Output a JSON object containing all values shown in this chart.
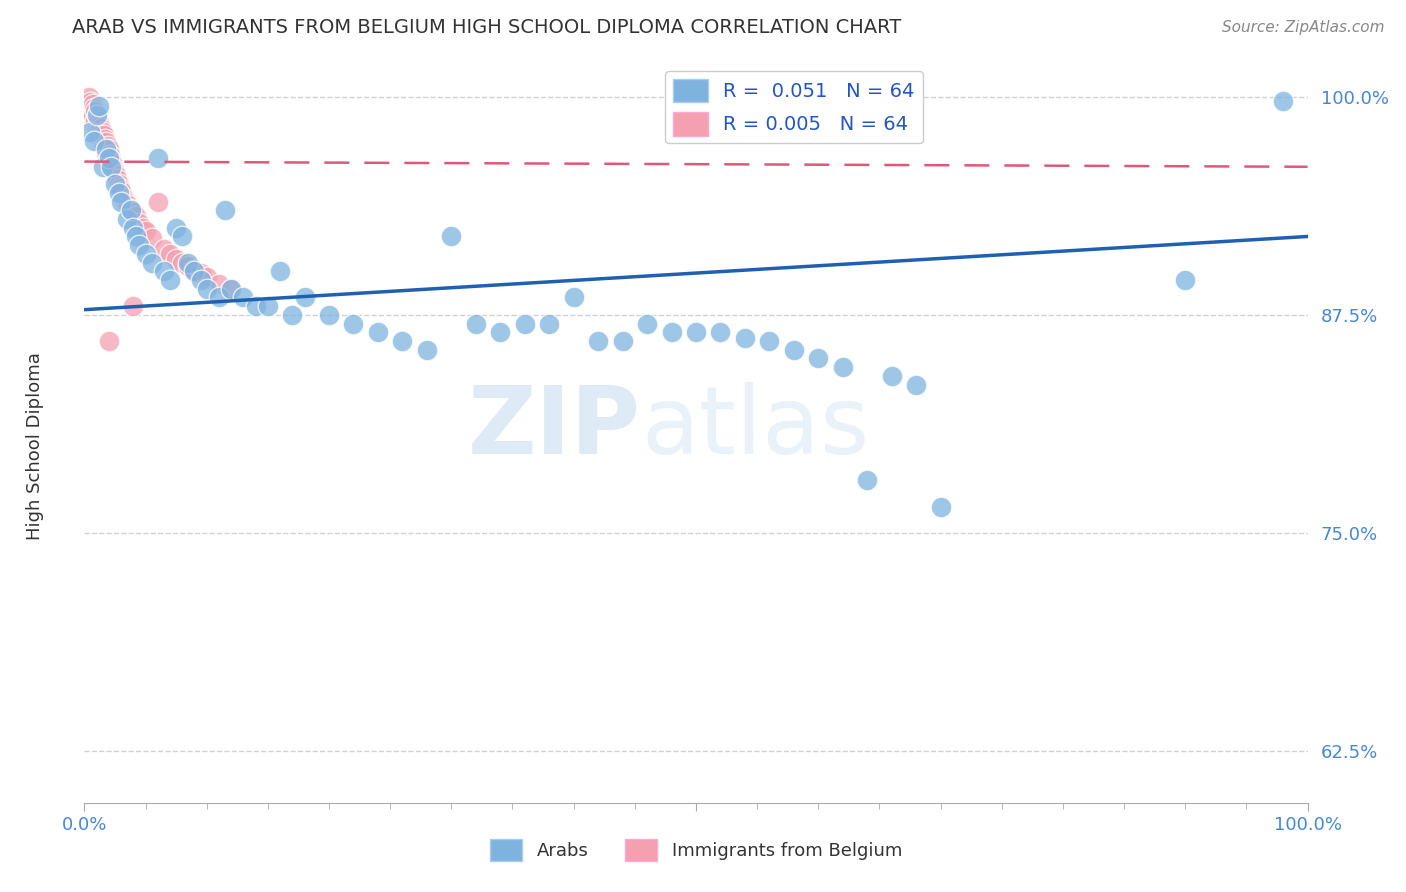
{
  "title": "ARAB VS IMMIGRANTS FROM BELGIUM HIGH SCHOOL DIPLOMA CORRELATION CHART",
  "source": "Source: ZipAtlas.com",
  "ylabel": "High School Diploma",
  "xlim": [
    0.0,
    1.0
  ],
  "ylim": [
    0.595,
    1.025
  ],
  "yticks": [
    0.625,
    0.75,
    0.875,
    1.0
  ],
  "ytick_labels": [
    "62.5%",
    "75.0%",
    "87.5%",
    "100.0%"
  ],
  "xtick_labels": [
    "0.0%",
    "100.0%"
  ],
  "legend_blue_label": "Arabs",
  "legend_pink_label": "Immigrants from Belgium",
  "R_blue": "0.051",
  "N_blue": "64",
  "R_pink": "0.005",
  "N_pink": "64",
  "blue_color": "#7EB3E0",
  "pink_color": "#F4A0B0",
  "trend_blue_color": "#2060B0",
  "trend_pink_color": "#E05878",
  "blue_scatter_x": [
    0.005,
    0.008,
    0.01,
    0.012,
    0.015,
    0.018,
    0.02,
    0.022,
    0.025,
    0.028,
    0.03,
    0.035,
    0.038,
    0.04,
    0.042,
    0.045,
    0.05,
    0.055,
    0.06,
    0.065,
    0.07,
    0.075,
    0.08,
    0.085,
    0.09,
    0.095,
    0.1,
    0.11,
    0.115,
    0.12,
    0.13,
    0.14,
    0.15,
    0.16,
    0.17,
    0.18,
    0.2,
    0.22,
    0.24,
    0.26,
    0.28,
    0.3,
    0.32,
    0.34,
    0.36,
    0.38,
    0.4,
    0.42,
    0.44,
    0.46,
    0.48,
    0.5,
    0.52,
    0.54,
    0.56,
    0.58,
    0.6,
    0.62,
    0.64,
    0.66,
    0.68,
    0.7,
    0.9,
    0.98
  ],
  "blue_scatter_y": [
    0.98,
    0.975,
    0.99,
    0.995,
    0.96,
    0.97,
    0.965,
    0.96,
    0.95,
    0.945,
    0.94,
    0.93,
    0.935,
    0.925,
    0.92,
    0.915,
    0.91,
    0.905,
    0.965,
    0.9,
    0.895,
    0.925,
    0.92,
    0.905,
    0.9,
    0.895,
    0.89,
    0.885,
    0.935,
    0.89,
    0.885,
    0.88,
    0.88,
    0.9,
    0.875,
    0.885,
    0.875,
    0.87,
    0.865,
    0.86,
    0.855,
    0.92,
    0.87,
    0.865,
    0.87,
    0.87,
    0.885,
    0.86,
    0.86,
    0.87,
    0.865,
    0.865,
    0.865,
    0.862,
    0.86,
    0.855,
    0.85,
    0.845,
    0.78,
    0.84,
    0.835,
    0.765,
    0.895,
    0.998
  ],
  "pink_scatter_x": [
    0.002,
    0.003,
    0.004,
    0.004,
    0.005,
    0.006,
    0.006,
    0.007,
    0.007,
    0.008,
    0.008,
    0.009,
    0.009,
    0.01,
    0.01,
    0.011,
    0.011,
    0.012,
    0.012,
    0.013,
    0.013,
    0.014,
    0.015,
    0.015,
    0.016,
    0.016,
    0.017,
    0.018,
    0.018,
    0.019,
    0.02,
    0.021,
    0.022,
    0.023,
    0.024,
    0.025,
    0.026,
    0.027,
    0.028,
    0.029,
    0.03,
    0.032,
    0.034,
    0.036,
    0.038,
    0.04,
    0.042,
    0.045,
    0.048,
    0.05,
    0.055,
    0.06,
    0.065,
    0.07,
    0.075,
    0.08,
    0.085,
    0.09,
    0.095,
    0.1,
    0.11,
    0.12,
    0.04,
    0.02
  ],
  "pink_scatter_y": [
    0.998,
    0.995,
    1.0,
    0.992,
    0.997,
    0.993,
    0.988,
    0.996,
    0.99,
    0.994,
    0.985,
    0.992,
    0.986,
    0.99,
    0.983,
    0.988,
    0.981,
    0.986,
    0.979,
    0.984,
    0.977,
    0.982,
    0.98,
    0.975,
    0.978,
    0.972,
    0.976,
    0.974,
    0.968,
    0.972,
    0.97,
    0.967,
    0.964,
    0.962,
    0.959,
    0.957,
    0.955,
    0.953,
    0.95,
    0.948,
    0.946,
    0.942,
    0.94,
    0.938,
    0.936,
    0.934,
    0.932,
    0.928,
    0.925,
    0.923,
    0.919,
    0.94,
    0.913,
    0.91,
    0.907,
    0.905,
    0.903,
    0.901,
    0.899,
    0.897,
    0.893,
    0.89,
    0.88,
    0.86
  ],
  "watermark_zip": "ZIP",
  "watermark_atlas": "atlas",
  "background_color": "#FFFFFF",
  "grid_color": "#CCCCCC"
}
